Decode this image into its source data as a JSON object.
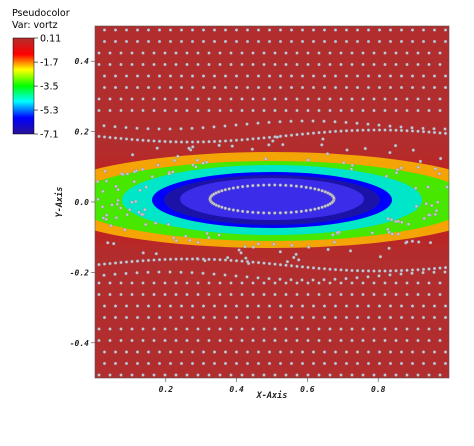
{
  "chart_data": {
    "type": "heatmap",
    "plot_kind": "pseudocolor",
    "title": "",
    "legend": {
      "line1": "Pseudocolor",
      "line2": "Var: vortz",
      "placement": "top-left",
      "max": 0.11,
      "min": -7.1,
      "ticks": [
        {
          "value": 0.11,
          "label": "0.11"
        },
        {
          "value": -1.7,
          "label": "-1.7"
        },
        {
          "value": -3.5,
          "label": "-3.5"
        },
        {
          "value": -5.3,
          "label": "-5.3"
        },
        {
          "value": -7.1,
          "label": "-7.1"
        }
      ],
      "colormap": [
        "#2a1196",
        "#0000ff",
        "#00ffff",
        "#00ff00",
        "#ffff00",
        "#ff0000",
        "#b22d2d"
      ]
    },
    "xlabel": "X-Axis",
    "ylabel": "Y-Axis",
    "xlim": [
      0.0,
      1.0
    ],
    "ylim": [
      -0.5,
      0.5
    ],
    "xticks": [
      {
        "value": 0.2,
        "label": "0.2"
      },
      {
        "value": 0.4,
        "label": "0.4"
      },
      {
        "value": 0.6,
        "label": "0.6"
      },
      {
        "value": 0.8,
        "label": "0.8"
      }
    ],
    "yticks": [
      {
        "value": 0.4,
        "label": "0.4"
      },
      {
        "value": 0.2,
        "label": "0.2"
      },
      {
        "value": 0.0,
        "label": "0.0"
      },
      {
        "value": -0.2,
        "label": "-0.2"
      },
      {
        "value": -0.4,
        "label": "-0.4"
      }
    ],
    "field": {
      "background_value": 0.11,
      "vortex_center": [
        0.5,
        0.0
      ],
      "vortex_semi_axis_x": 0.36,
      "vortex_semi_axis_y": 0.105,
      "core_value": -7.1
    },
    "overlay": "tracer-particles",
    "grid": false
  }
}
